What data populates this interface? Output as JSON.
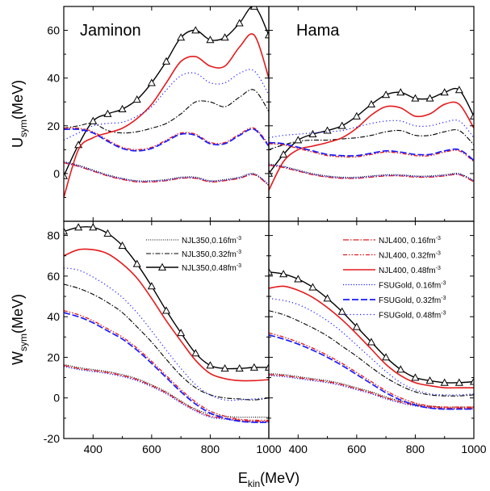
{
  "xlabel": "E_kin(MeV)",
  "ylabel_top": "U_sym(MeV)",
  "ylabel_bottom": "W_sym(MeV)",
  "panel_titles": {
    "top_left": "Jaminon",
    "top_right": "Hama"
  },
  "legend_left": [
    {
      "series": "njl350_016",
      "text": "NJL350,0.16fm",
      "sup": "-3"
    },
    {
      "series": "njl350_032",
      "text": "NJL350,0.32fm",
      "sup": "-3"
    },
    {
      "series": "njl350_048",
      "text": "NJL350,0.48fm",
      "sup": "-3"
    }
  ],
  "legend_right": [
    {
      "series": "njl400_016",
      "text": "NJL400,  0.16fm",
      "sup": "-3"
    },
    {
      "series": "njl400_032",
      "text": "NJL400,  0.32fm",
      "sup": "-3"
    },
    {
      "series": "njl400_048",
      "text": "NJL400,  0.48fm",
      "sup": "-3"
    },
    {
      "series": "fsu_016",
      "text": "FSUGold,  0.16fm",
      "sup": "-3"
    },
    {
      "series": "fsu_032",
      "text": "FSUGold,  0.32fm",
      "sup": "-3"
    },
    {
      "series": "fsu_048",
      "text": "FSUGold,  0.48fm",
      "sup": "-3"
    }
  ],
  "chart_data": {
    "type": "line",
    "xlim": [
      300,
      1000
    ],
    "x_ticks": [
      400,
      600,
      800,
      1000
    ],
    "x": [
      300,
      350,
      400,
      450,
      500,
      550,
      600,
      650,
      700,
      750,
      800,
      850,
      900,
      950,
      1000
    ],
    "series_styles": {
      "njl350_016": {
        "color": "#000000",
        "dash": "1,1.6",
        "width": 1.1,
        "marker": null
      },
      "njl350_032": {
        "color": "#000000",
        "dash": "6,2,1.5,2",
        "width": 1.1,
        "marker": null
      },
      "njl350_048": {
        "color": "#000000",
        "dash": null,
        "width": 1.4,
        "marker": "triangle"
      },
      "njl400_016": {
        "color": "#e41a1c",
        "dash": "7,2,1.5,2",
        "width": 1.3,
        "marker": null
      },
      "njl400_032": {
        "color": "#e41a1c",
        "dash": "5,2,1.5,2,1.5,2",
        "width": 1.3,
        "marker": null
      },
      "njl400_048": {
        "color": "#e41a1c",
        "dash": null,
        "width": 1.6,
        "marker": null
      },
      "fsu_016": {
        "color": "#1a1aff",
        "dash": "1.2,2",
        "width": 1.2,
        "marker": null
      },
      "fsu_032": {
        "color": "#1a1aff",
        "dash": "8,3",
        "width": 1.7,
        "marker": null
      },
      "fsu_048": {
        "color": "#1a1aff",
        "dash": "1.2,3",
        "width": 1.2,
        "marker": null
      }
    },
    "panels": [
      {
        "id": "U-Jaminon",
        "ylim": [
          -20,
          70
        ],
        "y_ticks": [
          -20,
          0,
          20,
          40,
          60
        ],
        "series": [
          {
            "name": "njl350_016",
            "values": [
              5,
              3.5,
              1.5,
              -0.5,
              -2,
              -3,
              -3,
              -2.5,
              -1.5,
              -1.5,
              -3,
              -2.5,
              -1.5,
              0,
              -5
            ]
          },
          {
            "name": "njl350_032",
            "values": [
              19,
              20,
              21,
              18,
              17,
              17.5,
              19,
              21,
              25,
              30,
              30,
              28,
              32,
              35,
              26
            ]
          },
          {
            "name": "njl350_048",
            "values": [
              -1,
              12,
              22,
              25,
              27,
              31,
              38,
              47,
              57,
              60,
              56,
              57,
              63,
              70,
              58
            ]
          },
          {
            "name": "njl400_016",
            "values": [
              4.5,
              3,
              1,
              -1,
              -2.5,
              -3.5,
              -3.5,
              -3,
              -2,
              -2,
              -3.5,
              -3,
              -2,
              -0.5,
              -5
            ]
          },
          {
            "name": "njl400_032",
            "values": [
              19,
              19,
              17.5,
              14,
              11,
              10,
              11,
              14,
              17,
              16.5,
              13,
              13,
              16.5,
              19,
              12
            ]
          },
          {
            "name": "njl400_048",
            "values": [
              -10,
              10,
              15,
              17,
              19,
              23,
              29,
              38,
              47,
              49,
              45,
              45,
              53,
              58,
              40
            ]
          },
          {
            "name": "fsu_016",
            "values": [
              4.8,
              3.2,
              1.2,
              -0.8,
              -2.2,
              -3.2,
              -3.2,
              -2.8,
              -1.8,
              -1.8,
              -3.2,
              -2.8,
              -1.8,
              -0.3,
              -4.5
            ]
          },
          {
            "name": "fsu_032",
            "values": [
              18.5,
              18.5,
              17,
              13.5,
              10.5,
              9.5,
              10.5,
              13.5,
              16.5,
              16,
              12.5,
              12.5,
              16,
              18.5,
              11.5
            ]
          },
          {
            "name": "fsu_048",
            "values": [
              14,
              17,
              20,
              21,
              21.5,
              24,
              28,
              35,
              41,
              42,
              38,
              38,
              42,
              43,
              33
            ]
          }
        ]
      },
      {
        "id": "U-Hama",
        "ylim": [
          -20,
          70
        ],
        "y_ticks": [
          -20,
          0,
          20,
          40,
          60
        ],
        "series": [
          {
            "name": "njl350_016",
            "values": [
              4,
              3,
              1.5,
              0,
              -1,
              -1.5,
              -1.5,
              -1,
              -0.5,
              -0.5,
              -1,
              -1,
              -0.5,
              0,
              -3
            ]
          },
          {
            "name": "njl350_032",
            "values": [
              10,
              12,
              13.5,
              14,
              14,
              14.5,
              15,
              16,
              17.5,
              18,
              16,
              16,
              17.5,
              18,
              12
            ]
          },
          {
            "name": "njl350_048",
            "values": [
              0,
              8,
              14,
              16.5,
              18,
              20,
              24,
              29,
              33,
              34,
              31.5,
              31.5,
              34,
              35,
              24
            ]
          },
          {
            "name": "njl400_016",
            "values": [
              3.5,
              2.5,
              1,
              -0.5,
              -1.5,
              -2,
              -2,
              -1.5,
              -1,
              -1,
              -1.5,
              -1.5,
              -1,
              -0.5,
              -3.5
            ]
          },
          {
            "name": "njl400_032",
            "values": [
              12.5,
              12,
              10.5,
              9,
              7.5,
              7,
              7,
              8,
              9,
              8.5,
              7.5,
              7.5,
              9,
              9.5,
              5
            ]
          },
          {
            "name": "njl400_048",
            "values": [
              -7,
              5,
              10,
              11.5,
              13,
              15,
              19,
              24.5,
              28,
              27.5,
              24,
              25,
              29,
              29,
              19
            ]
          },
          {
            "name": "fsu_016",
            "values": [
              3.8,
              2.8,
              1.2,
              -0.3,
              -1.2,
              -1.8,
              -1.8,
              -1.2,
              -0.8,
              -0.8,
              -1.2,
              -1.2,
              -0.8,
              -0.3,
              -3
            ]
          },
          {
            "name": "fsu_032",
            "values": [
              13,
              12.5,
              11,
              9.5,
              8,
              7.5,
              7.5,
              8.5,
              9.5,
              9,
              8,
              8,
              9.5,
              10,
              5.5
            ]
          },
          {
            "name": "fsu_048",
            "values": [
              15,
              16,
              16.5,
              17,
              17.5,
              18,
              19.5,
              21,
              22,
              22,
              20,
              20,
              21.5,
              22,
              15
            ]
          }
        ]
      },
      {
        "id": "W-Jaminon",
        "ylim": [
          -20,
          87
        ],
        "y_ticks": [
          -20,
          0,
          20,
          40,
          60,
          80
        ],
        "series": [
          {
            "name": "njl350_016",
            "values": [
              16.5,
              15,
              14,
              13,
              11.5,
              9.5,
              6.5,
              3,
              -1.5,
              -5.5,
              -8,
              -9,
              -9.5,
              -9.5,
              -9.5
            ]
          },
          {
            "name": "njl350_032",
            "values": [
              56,
              54,
              51,
              47,
              42,
              35,
              27.5,
              19,
              11,
              5,
              1.5,
              0,
              -0.5,
              -1,
              0
            ]
          },
          {
            "name": "njl350_048",
            "values": [
              82,
              84,
              84,
              81,
              75,
              66,
              55,
              43,
              32,
              22,
              16,
              14.5,
              14.5,
              15,
              15
            ]
          },
          {
            "name": "njl400_016",
            "values": [
              16,
              14.5,
              13.5,
              12.5,
              11,
              9,
              6,
              2.5,
              -2,
              -6,
              -9,
              -10,
              -11,
              -11.5,
              -11.5
            ]
          },
          {
            "name": "njl400_032",
            "values": [
              43,
              41,
              38,
              34,
              30,
              24.5,
              18,
              11,
              4,
              -2,
              -6.5,
              -9,
              -10.5,
              -11,
              -11
            ]
          },
          {
            "name": "njl400_048",
            "values": [
              70,
              73,
              73,
              71,
              66,
              59,
              49,
              38,
              28,
              18.5,
              12,
              9.5,
              8.5,
              8.5,
              9
            ]
          },
          {
            "name": "fsu_016",
            "values": [
              15.5,
              14,
              13,
              12,
              10.5,
              8.5,
              5.5,
              2,
              -2.5,
              -6.5,
              -9.5,
              -10.5,
              -11.5,
              -12,
              -12
            ]
          },
          {
            "name": "fsu_032",
            "values": [
              42,
              40,
              37,
              33,
              29,
              23.5,
              17,
              10,
              3,
              -3,
              -7.5,
              -10,
              -11.5,
              -12,
              -12
            ]
          },
          {
            "name": "fsu_048",
            "values": [
              64,
              63,
              59.5,
              55,
              49.5,
              42,
              33,
              23.5,
              14.5,
              6.5,
              1.5,
              -1,
              -1,
              -0.5,
              0
            ]
          }
        ]
      },
      {
        "id": "W-Hama",
        "ylim": [
          -20,
          87
        ],
        "y_ticks": [
          -20,
          0,
          20,
          40,
          60,
          80
        ],
        "series": [
          {
            "name": "njl350_016",
            "values": [
              12,
              11.5,
              10.5,
              9.5,
              8.5,
              7,
              5,
              3,
              0.5,
              -1.5,
              -3,
              -4,
              -4.5,
              -4.5,
              -4.5
            ]
          },
          {
            "name": "njl350_032",
            "values": [
              43,
              41,
              38,
              34.5,
              30.5,
              25.5,
              20.5,
              15,
              10,
              6,
              3,
              1.5,
              1,
              1,
              1.5
            ]
          },
          {
            "name": "njl350_048",
            "values": [
              62,
              61,
              58.5,
              54.5,
              49,
              42.5,
              35,
              27.5,
              20,
              14,
              10,
              8.5,
              7.5,
              7.5,
              8
            ]
          },
          {
            "name": "njl400_016",
            "values": [
              11.5,
              11,
              10,
              9,
              8,
              6.5,
              4.5,
              2.5,
              0,
              -2,
              -3.5,
              -4.5,
              -5,
              -5,
              -5
            ]
          },
          {
            "name": "njl400_032",
            "values": [
              32,
              30,
              27.5,
              24.5,
              21,
              17,
              12.5,
              8,
              3.5,
              0,
              -2.5,
              -4,
              -4.5,
              -4.5,
              -4.5
            ]
          },
          {
            "name": "njl400_048",
            "values": [
              54,
              55,
              53,
              49.5,
              44.5,
              38.5,
              31.5,
              24,
              16.5,
              11,
              7.5,
              6,
              5,
              5,
              5
            ]
          },
          {
            "name": "fsu_016",
            "values": [
              11,
              10.5,
              9.5,
              8.5,
              7.5,
              6,
              4,
              2,
              -0.5,
              -2.5,
              -4,
              -5,
              -5.5,
              -5.5,
              -5.5
            ]
          },
          {
            "name": "fsu_032",
            "values": [
              31,
              29,
              26.5,
              23.5,
              20,
              16,
              11.5,
              7,
              2.5,
              -1,
              -3.5,
              -5,
              -5.5,
              -5.5,
              -5.5
            ]
          },
          {
            "name": "fsu_048",
            "values": [
              49,
              48,
              46,
              42.5,
              38,
              32.5,
              26,
              19.5,
              13,
              7.5,
              4,
              2,
              1.5,
              1.5,
              2
            ]
          }
        ]
      }
    ]
  }
}
